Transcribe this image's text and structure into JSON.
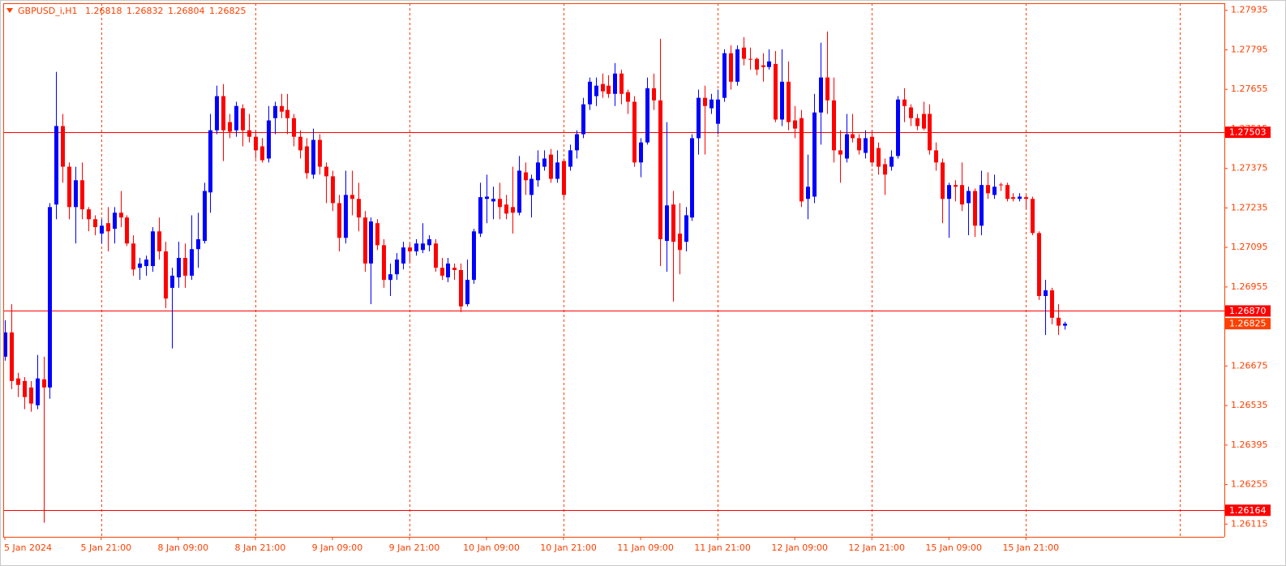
{
  "chart_data": {
    "type": "candlestick",
    "title": "GBPUSD_i,H1",
    "categories": [
      "5 Jan 2024",
      null,
      null,
      null,
      null,
      null,
      null,
      null,
      null,
      null,
      null,
      null,
      null,
      null,
      null,
      "5 Jan 21:00",
      null,
      null,
      null,
      null,
      null,
      null,
      null,
      null,
      null,
      null,
      null,
      "8 Jan 09:00",
      null,
      null,
      null,
      null,
      null,
      null,
      null,
      null,
      null,
      null,
      null,
      "8 Jan 21:00",
      null,
      null,
      null,
      null,
      null,
      null,
      null,
      null,
      null,
      null,
      null,
      "9 Jan 09:00",
      null,
      null,
      null,
      null,
      null,
      null,
      null,
      null,
      null,
      null,
      null,
      "9 Jan 21:00",
      null,
      null,
      null,
      null,
      null,
      null,
      null,
      null,
      null,
      null,
      null,
      "10 Jan 09:00",
      null,
      null,
      null,
      null,
      null,
      null,
      null,
      null,
      null,
      null,
      null,
      "10 Jan 21:00",
      null,
      null,
      null,
      null,
      null,
      null,
      null,
      null,
      null,
      null,
      null,
      "11 Jan 09:00",
      null,
      null,
      null,
      null,
      null,
      null,
      null,
      null,
      null,
      null,
      null,
      "11 Jan 21:00",
      null,
      null,
      null,
      null,
      null,
      null,
      null,
      null,
      null,
      null,
      null,
      "12 Jan 09:00",
      null,
      null,
      null,
      null,
      null,
      null,
      null,
      null,
      null,
      null,
      null,
      "12 Jan 21:00",
      null,
      null,
      null,
      null,
      null,
      null,
      null,
      null,
      null,
      null,
      null,
      "15 Jan 09:00",
      null,
      null,
      null,
      null,
      null,
      null,
      null,
      null,
      null,
      null,
      null,
      "15 Jan 21:00",
      null,
      null,
      null,
      null,
      null,
      null
    ],
    "ohlc": [
      [
        1.26708,
        1.26837,
        1.26694,
        1.26794
      ],
      [
        1.26794,
        1.26894,
        1.26593,
        1.26622
      ],
      [
        1.26631,
        1.26651,
        1.26565,
        1.26608
      ],
      [
        1.26622,
        1.26636,
        1.26522,
        1.26565
      ],
      [
        1.26599,
        1.26622,
        1.26513,
        1.26542
      ],
      [
        1.26536,
        1.26714,
        1.26522,
        1.26631
      ],
      [
        1.26628,
        1.26708,
        1.2612,
        1.26599
      ],
      [
        1.26599,
        1.27252,
        1.26559,
        1.27238
      ],
      [
        1.27247,
        1.27717,
        1.27195,
        1.27525
      ],
      [
        1.27525,
        1.27568,
        1.27324,
        1.27381
      ],
      [
        1.27381,
        1.27396,
        1.27195,
        1.27238
      ],
      [
        1.27238,
        1.27381,
        1.27109,
        1.27333
      ],
      [
        1.27333,
        1.27396,
        1.27195,
        1.2723
      ],
      [
        1.2723,
        1.27238,
        1.27152,
        1.27195
      ],
      [
        1.27195,
        1.27209,
        1.27138,
        1.27167
      ],
      [
        1.27144,
        1.27195,
        1.27109,
        1.27172
      ],
      [
        1.27181,
        1.27238,
        1.27081,
        1.27152
      ],
      [
        1.27161,
        1.27238,
        1.27109,
        1.27218
      ],
      [
        1.27218,
        1.27295,
        1.27167,
        1.27201
      ],
      [
        1.27201,
        1.27209,
        1.271,
        1.27109
      ],
      [
        1.27109,
        1.27138,
        1.26995,
        1.27017
      ],
      [
        1.27023,
        1.27058,
        1.2698,
        1.27038
      ],
      [
        1.27029,
        1.27066,
        1.26995,
        1.27052
      ],
      [
        1.27029,
        1.27167,
        1.27009,
        1.27152
      ],
      [
        1.27152,
        1.27201,
        1.27052,
        1.27081
      ],
      [
        1.27081,
        1.27115,
        1.2688,
        1.26914
      ],
      [
        1.26952,
        1.27023,
        1.26737,
        1.26995
      ],
      [
        1.26989,
        1.27115,
        1.26952,
        1.27058
      ],
      [
        1.27058,
        1.27109,
        1.26952,
        1.26995
      ],
      [
        1.26995,
        1.27209,
        1.2698,
        1.27089
      ],
      [
        1.27089,
        1.27218,
        1.27023,
        1.27124
      ],
      [
        1.27118,
        1.27324,
        1.27109,
        1.27295
      ],
      [
        1.2729,
        1.27568,
        1.27218,
        1.2751
      ],
      [
        1.2751,
        1.27668,
        1.27496,
        1.27631
      ],
      [
        1.27631,
        1.27674,
        1.27401,
        1.2751
      ],
      [
        1.27539,
        1.27568,
        1.27482,
        1.27505
      ],
      [
        1.2751,
        1.27611,
        1.27487,
        1.27596
      ],
      [
        1.27588,
        1.27602,
        1.27453,
        1.2751
      ],
      [
        1.2751,
        1.27568,
        1.27467,
        1.27487
      ],
      [
        1.27487,
        1.2751,
        1.2741,
        1.27439
      ],
      [
        1.27453,
        1.27482,
        1.27396,
        1.27404
      ],
      [
        1.2741,
        1.27596,
        1.27396,
        1.27545
      ],
      [
        1.27553,
        1.27611,
        1.27496,
        1.27596
      ],
      [
        1.27596,
        1.27639,
        1.27553,
        1.27576
      ],
      [
        1.27582,
        1.27639,
        1.27496,
        1.27553
      ],
      [
        1.27553,
        1.27568,
        1.27453,
        1.27487
      ],
      [
        1.27487,
        1.2751,
        1.2741,
        1.27439
      ],
      [
        1.27453,
        1.27482,
        1.27338,
        1.27358
      ],
      [
        1.27353,
        1.27516,
        1.27338,
        1.27476
      ],
      [
        1.27476,
        1.27496,
        1.27353,
        1.27381
      ],
      [
        1.27381,
        1.27396,
        1.27252,
        1.27347
      ],
      [
        1.27347,
        1.27367,
        1.27224,
        1.27252
      ],
      [
        1.27252,
        1.27281,
        1.27081,
        1.27129
      ],
      [
        1.27129,
        1.27367,
        1.27109,
        1.27281
      ],
      [
        1.27281,
        1.27367,
        1.27209,
        1.27267
      ],
      [
        1.27267,
        1.27324,
        1.27152,
        1.27201
      ],
      [
        1.27201,
        1.27224,
        1.27009,
        1.27038
      ],
      [
        1.27038,
        1.27201,
        1.26894,
        1.27187
      ],
      [
        1.27181,
        1.27195,
        1.27086,
        1.27103
      ],
      [
        1.27103,
        1.27124,
        1.26952,
        1.2698
      ],
      [
        1.2698,
        1.27038,
        1.26923,
        1.27
      ],
      [
        1.27,
        1.27075,
        1.2698,
        1.27052
      ],
      [
        1.27038,
        1.27115,
        1.27017,
        1.27095
      ],
      [
        1.27095,
        1.27109,
        1.27038,
        1.27081
      ],
      [
        1.27081,
        1.27124,
        1.27066,
        1.27109
      ],
      [
        1.27086,
        1.27181,
        1.27075,
        1.27109
      ],
      [
        1.27103,
        1.27138,
        1.27081,
        1.27124
      ],
      [
        1.27109,
        1.27124,
        1.27009,
        1.27023
      ],
      [
        1.27023,
        1.27058,
        1.2698,
        1.26995
      ],
      [
        1.26989,
        1.27058,
        1.26972,
        1.27038
      ],
      [
        1.27023,
        1.27038,
        1.2698,
        1.27015
      ],
      [
        1.27015,
        1.27038,
        1.26866,
        1.26886
      ],
      [
        1.26894,
        1.27052,
        1.26886,
        1.2698
      ],
      [
        1.2698,
        1.27161,
        1.26966,
        1.27152
      ],
      [
        1.27144,
        1.27324,
        1.27132,
        1.27273
      ],
      [
        1.27267,
        1.27353,
        1.27181,
        1.27275
      ],
      [
        1.27258,
        1.2731,
        1.27195,
        1.27267
      ],
      [
        1.27267,
        1.27324,
        1.27195,
        1.27238
      ],
      [
        1.27247,
        1.27281,
        1.27195,
        1.27215
      ],
      [
        1.27238,
        1.27381,
        1.27144,
        1.27218
      ],
      [
        1.27218,
        1.27419,
        1.27209,
        1.27367
      ],
      [
        1.27361,
        1.27396,
        1.27281,
        1.27333
      ],
      [
        1.27281,
        1.27353,
        1.27201,
        1.27338
      ],
      [
        1.27333,
        1.27439,
        1.2731,
        1.27396
      ],
      [
        1.27381,
        1.27439,
        1.27367,
        1.2741
      ],
      [
        1.27424,
        1.27444,
        1.27324,
        1.27338
      ],
      [
        1.27338,
        1.27439,
        1.27324,
        1.27396
      ],
      [
        1.27401,
        1.2741,
        1.27267,
        1.27281
      ],
      [
        1.27381,
        1.27459,
        1.27367,
        1.27439
      ],
      [
        1.27439,
        1.2751,
        1.2741,
        1.27496
      ],
      [
        1.27496,
        1.27625,
        1.27482,
        1.27602
      ],
      [
        1.27602,
        1.27697,
        1.27582,
        1.27682
      ],
      [
        1.27631,
        1.27697,
        1.27596,
        1.27668
      ],
      [
        1.27674,
        1.27711,
        1.27625,
        1.27648
      ],
      [
        1.27668,
        1.27705,
        1.27625,
        1.27639
      ],
      [
        1.27639,
        1.27748,
        1.27596,
        1.27711
      ],
      [
        1.27711,
        1.27725,
        1.27602,
        1.27639
      ],
      [
        1.27645,
        1.27654,
        1.27568,
        1.27611
      ],
      [
        1.27611,
        1.27631,
        1.27381,
        1.27396
      ],
      [
        1.27396,
        1.27482,
        1.27344,
        1.27467
      ],
      [
        1.27467,
        1.27697,
        1.27459,
        1.27659
      ],
      [
        1.27659,
        1.27711,
        1.27582,
        1.27616
      ],
      [
        1.27616,
        1.27834,
        1.27029,
        1.27124
      ],
      [
        1.27118,
        1.27539,
        1.27009,
        1.27244
      ],
      [
        1.27247,
        1.27295,
        1.26903,
        1.27115
      ],
      [
        1.27144,
        1.27252,
        1.27,
        1.27086
      ],
      [
        1.27115,
        1.27238,
        1.27081,
        1.27209
      ],
      [
        1.27201,
        1.27496,
        1.27189,
        1.27482
      ],
      [
        1.27482,
        1.27654,
        1.27424,
        1.27625
      ],
      [
        1.27625,
        1.27668,
        1.27424,
        1.27596
      ],
      [
        1.27588,
        1.27639,
        1.27568,
        1.27619
      ],
      [
        1.27533,
        1.27654,
        1.27496,
        1.27619
      ],
      [
        1.27625,
        1.27797,
        1.27611,
        1.27783
      ],
      [
        1.27783,
        1.27811,
        1.27654,
        1.27682
      ],
      [
        1.27682,
        1.27811,
        1.27668,
        1.27797
      ],
      [
        1.27803,
        1.2784,
        1.2774,
        1.27763
      ],
      [
        1.27763,
        1.27803,
        1.27725,
        1.2776
      ],
      [
        1.27763,
        1.27768,
        1.27705,
        1.27725
      ],
      [
        1.2774,
        1.27783,
        1.27682,
        1.27734
      ],
      [
        1.27734,
        1.27797,
        1.27725,
        1.27754
      ],
      [
        1.27745,
        1.27791,
        1.27539,
        1.27548
      ],
      [
        1.27548,
        1.27797,
        1.27525,
        1.27682
      ],
      [
        1.27682,
        1.27754,
        1.2751,
        1.27539
      ],
      [
        1.27545,
        1.27596,
        1.27482,
        1.27516
      ],
      [
        1.27553,
        1.27582,
        1.27238,
        1.27258
      ],
      [
        1.27267,
        1.27424,
        1.27195,
        1.2731
      ],
      [
        1.27275,
        1.27639,
        1.27252,
        1.27573
      ],
      [
        1.27573,
        1.2782,
        1.27459,
        1.27697
      ],
      [
        1.27697,
        1.2786,
        1.27568,
        1.27616
      ],
      [
        1.27616,
        1.27697,
        1.27396,
        1.27439
      ],
      [
        1.27439,
        1.2751,
        1.27324,
        1.27424
      ],
      [
        1.2741,
        1.27568,
        1.27396,
        1.27496
      ],
      [
        1.27496,
        1.27568,
        1.27467,
        1.27482
      ],
      [
        1.27482,
        1.27496,
        1.27424,
        1.27439
      ],
      [
        1.2743,
        1.2751,
        1.2741,
        1.27482
      ],
      [
        1.27487,
        1.2751,
        1.27381,
        1.27396
      ],
      [
        1.27447,
        1.27467,
        1.27353,
        1.27381
      ],
      [
        1.2739,
        1.2741,
        1.27281,
        1.27353
      ],
      [
        1.27381,
        1.27439,
        1.27367,
        1.27416
      ],
      [
        1.27419,
        1.27631,
        1.2741,
        1.27619
      ],
      [
        1.27619,
        1.27659,
        1.27539,
        1.27596
      ],
      [
        1.27591,
        1.27602,
        1.27525,
        1.27553
      ],
      [
        1.27553,
        1.27568,
        1.2751,
        1.27525
      ],
      [
        1.27568,
        1.27611,
        1.2751,
        1.27516
      ],
      [
        1.27568,
        1.27602,
        1.27424,
        1.27439
      ],
      [
        1.27439,
        1.27467,
        1.27367,
        1.27396
      ],
      [
        1.27396,
        1.2741,
        1.27181,
        1.27267
      ],
      [
        1.27267,
        1.27324,
        1.27129,
        1.27316
      ],
      [
        1.27316,
        1.27333,
        1.27258,
        1.2731
      ],
      [
        1.27316,
        1.27396,
        1.27224,
        1.27247
      ],
      [
        1.27252,
        1.2731,
        1.27138,
        1.27295
      ],
      [
        1.27295,
        1.27304,
        1.27132,
        1.27172
      ],
      [
        1.27172,
        1.27367,
        1.27138,
        1.27316
      ],
      [
        1.27316,
        1.27361,
        1.27267,
        1.27287
      ],
      [
        1.27281,
        1.27353,
        1.27267,
        1.2731
      ],
      [
        1.27318,
        1.27324,
        1.27295,
        1.27316
      ],
      [
        1.27316,
        1.27324,
        1.27258,
        1.27267
      ],
      [
        1.27273,
        1.27287,
        1.27258,
        1.27267
      ],
      [
        1.27267,
        1.27287,
        1.27258,
        1.27275
      ],
      [
        1.27273,
        1.27281,
        1.2723,
        1.27267
      ],
      [
        1.27267,
        1.27275,
        1.27138,
        1.27146
      ],
      [
        1.27146,
        1.27152,
        1.26909,
        1.26923
      ],
      [
        1.26923,
        1.2698,
        1.26785,
        1.26943
      ],
      [
        1.26943,
        1.26952,
        1.26823,
        1.26846
      ],
      [
        1.26846,
        1.26894,
        1.26785,
        1.26818
      ],
      [
        1.26818,
        1.26832,
        1.26804,
        1.26825
      ]
    ],
    "ylim": [
      1.2607,
      1.2796
    ],
    "yticks": [
      1.27935,
      1.27795,
      1.27655,
      1.27515,
      1.27375,
      1.27235,
      1.27095,
      1.26955,
      1.26675,
      1.26535,
      1.26395,
      1.26255,
      1.26115
    ],
    "hlines": [
      1.27503,
      {
        "value": 1.2687,
        "label": "1.26870"
      },
      1.26164
    ],
    "grid": true,
    "up_color": "#0000ff",
    "down_color": "#ff0000",
    "hline_color": "#ff0000",
    "price_label_color": "#ff4000",
    "text_color": "#ff4000"
  }
}
